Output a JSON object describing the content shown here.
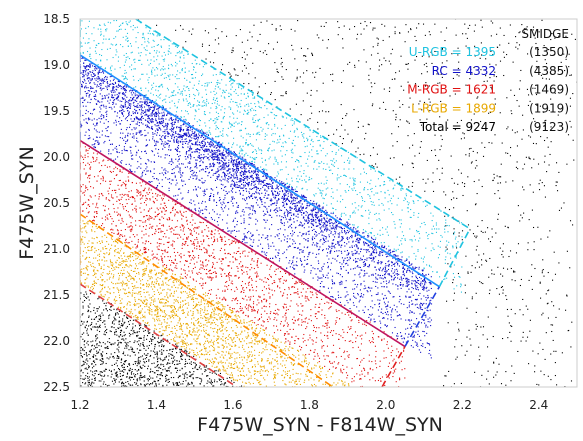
{
  "chart_data": {
    "type": "scatter",
    "xlabel": "F475W_SYN - F814W_SYN",
    "ylabel": "F475W_SYN",
    "xlim": [
      1.2,
      2.5
    ],
    "ylim": [
      22.5,
      18.5
    ],
    "y_inverted": true,
    "grid": false,
    "x_ticks": [
      {
        "value": 1.2,
        "label": "1.2"
      },
      {
        "value": 1.4,
        "label": "1.4"
      },
      {
        "value": 1.6,
        "label": "1.6"
      },
      {
        "value": 1.8,
        "label": "1.8"
      },
      {
        "value": 2.0,
        "label": "2.0"
      },
      {
        "value": 2.2,
        "label": "2.2"
      },
      {
        "value": 2.4,
        "label": "2.4"
      }
    ],
    "y_ticks": [
      {
        "value": 18.5,
        "label": "18.5"
      },
      {
        "value": 19.0,
        "label": "19.0"
      },
      {
        "value": 19.5,
        "label": "19.5"
      },
      {
        "value": 20.0,
        "label": "20.0"
      },
      {
        "value": 20.5,
        "label": "20.5"
      },
      {
        "value": 21.0,
        "label": "21.0"
      },
      {
        "value": 21.5,
        "label": "21.5"
      },
      {
        "value": 22.0,
        "label": "22.0"
      },
      {
        "value": 22.5,
        "label": "22.5"
      }
    ],
    "boundary_lines": [
      {
        "color": "#1fc3e0",
        "style": "dashed",
        "points": [
          [
            1.2,
            18.12
          ],
          [
            2.22,
            20.78
          ]
        ]
      },
      {
        "color": "#1e90ff",
        "style": "solid",
        "points": [
          [
            1.2,
            18.89
          ],
          [
            2.14,
            21.41
          ]
        ]
      },
      {
        "color": "#c0155f",
        "style": "solid",
        "points": [
          [
            1.2,
            19.82
          ],
          [
            2.05,
            22.06
          ]
        ]
      },
      {
        "color": "#ff8c00",
        "style": "dashed",
        "points": [
          [
            1.2,
            20.62
          ],
          [
            2.02,
            22.95
          ]
        ]
      },
      {
        "color": "#e04040",
        "style": "dashed",
        "points": [
          [
            1.2,
            21.38
          ],
          [
            1.83,
            23.1
          ]
        ]
      }
    ],
    "edge_lines": [
      {
        "color": "#1fc3e0",
        "style": "dashed",
        "points": [
          [
            2.14,
            21.41
          ],
          [
            2.22,
            20.78
          ]
        ]
      },
      {
        "color": "#2040e0",
        "style": "dashed",
        "points": [
          [
            2.05,
            22.06
          ],
          [
            2.14,
            21.41
          ]
        ]
      },
      {
        "color": "#e02020",
        "style": "dashed",
        "points": [
          [
            1.99,
            22.5
          ],
          [
            2.05,
            22.06
          ]
        ]
      },
      {
        "color": "#1fc3e0",
        "style": "dashed",
        "points": [
          [
            1.2,
            18.5
          ],
          [
            1.2,
            18.89
          ]
        ]
      },
      {
        "color": "#2040e0",
        "style": "dashed",
        "points": [
          [
            1.2,
            18.89
          ],
          [
            1.2,
            19.82
          ]
        ]
      },
      {
        "color": "#e02020",
        "style": "dashed",
        "points": [
          [
            1.2,
            19.82
          ],
          [
            1.2,
            20.62
          ]
        ]
      },
      {
        "color": "#ff8c00",
        "style": "dashed",
        "points": [
          [
            1.2,
            20.62
          ],
          [
            1.2,
            21.38
          ]
        ]
      }
    ],
    "series": [
      {
        "name": "U-RGB",
        "color": "#1fc3e0",
        "region": "upper",
        "count": 1395
      },
      {
        "name": "RC",
        "color": "#1010c8",
        "region": "rc",
        "count": 4332
      },
      {
        "name": "M-RGB",
        "color": "#e01010",
        "region": "middle",
        "count": 1621
      },
      {
        "name": "L-RGB",
        "color": "#e8a800",
        "region": "lower",
        "count": 1899
      },
      {
        "color": "#000000",
        "region": "faint"
      },
      {
        "color": "#000000",
        "region": "field"
      }
    ],
    "legend": {
      "placement": "top-right",
      "header": "SMIDGE",
      "rows": [
        {
          "text": "U-RGB = 1395",
          "ref": "(1350)",
          "color": "#1fc3e0"
        },
        {
          "text": "RC = 4332",
          "ref": "(4385)",
          "color": "#1010c8"
        },
        {
          "text": "M-RGB = 1621",
          "ref": "(1469)",
          "color": "#e01010"
        },
        {
          "text": "L-RGB = 1899",
          "ref": "(1919)",
          "color": "#e8a800"
        },
        {
          "text": "Total = 9247",
          "ref": "(9123)",
          "color": "#000000"
        }
      ]
    }
  }
}
